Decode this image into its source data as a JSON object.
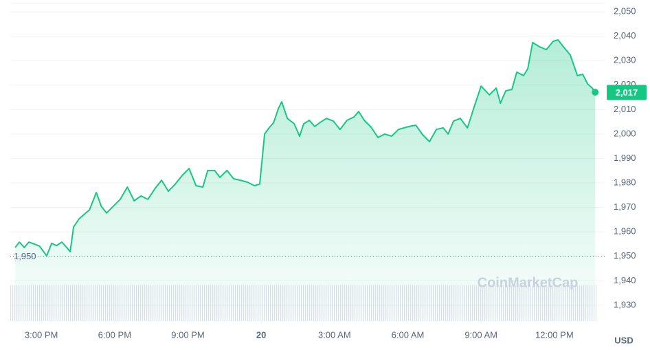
{
  "chart_data": {
    "type": "line",
    "x": [
      13.93,
      14.1,
      14.3,
      14.49,
      14.72,
      14.92,
      15.22,
      15.42,
      15.62,
      15.84,
      16.04,
      16.18,
      16.32,
      16.55,
      16.74,
      16.97,
      17.25,
      17.45,
      17.67,
      17.95,
      18.23,
      18.52,
      18.8,
      19.08,
      19.36,
      19.64,
      19.92,
      20.2,
      20.48,
      20.77,
      21.05,
      21.33,
      21.61,
      21.81,
      22.09,
      22.31,
      22.6,
      22.87,
      23.15,
      23.44,
      23.72,
      23.94,
      24.14,
      24.34,
      24.51,
      24.7,
      24.84,
      25.07,
      25.35,
      25.57,
      25.74,
      25.97,
      26.19,
      26.42,
      26.67,
      26.95,
      27.23,
      27.51,
      27.8,
      27.99,
      28.22,
      28.5,
      28.78,
      29.06,
      29.34,
      29.62,
      30.05,
      30.33,
      30.61,
      30.89,
      31.17,
      31.45,
      31.65,
      31.87,
      32.15,
      32.44,
      32.72,
      33.0,
      33.34,
      33.62,
      33.79,
      34.01,
      34.26,
      34.46,
      34.74,
      34.91,
      35.11,
      35.39,
      35.67,
      35.95,
      36.15,
      36.37,
      36.65,
      36.94,
      37.16,
      37.36,
      37.55,
      37.67
    ],
    "series": [
      {
        "color": "#16c784",
        "values": [
          1953.6,
          1955.8,
          1953.6,
          1955.8,
          1955.0,
          1954.2,
          1950.2,
          1955.3,
          1954.4,
          1955.8,
          1953.6,
          1951.9,
          1962.0,
          1965.4,
          1967.0,
          1969.0,
          1976.1,
          1970.5,
          1967.7,
          1970.5,
          1973.3,
          1978.3,
          1972.7,
          1974.7,
          1973.3,
          1977.5,
          1981.1,
          1976.6,
          1979.5,
          1983.1,
          1985.9,
          1978.9,
          1978.3,
          1985.1,
          1985.1,
          1982.3,
          1985.1,
          1981.7,
          1981.1,
          1980.3,
          1978.9,
          1979.5,
          2000.0,
          2002.8,
          2004.7,
          2010.4,
          2013.2,
          2006.4,
          2004.2,
          1999.1,
          2004.2,
          2005.6,
          2003.1,
          2004.8,
          2006.4,
          2005.3,
          2001.9,
          2005.6,
          2007.0,
          2009.2,
          2005.6,
          2002.8,
          1998.6,
          2000.0,
          1999.1,
          2001.9,
          2003.1,
          2003.6,
          1999.7,
          1996.9,
          2001.9,
          2002.5,
          2000.0,
          2005.3,
          2006.4,
          2002.5,
          2011.2,
          2019.6,
          2016.0,
          2018.8,
          2012.6,
          2017.7,
          2018.2,
          2025.3,
          2023.9,
          2026.7,
          2037.4,
          2035.7,
          2034.5,
          2037.9,
          2038.5,
          2035.7,
          2032.3,
          2023.9,
          2024.4,
          2020.5,
          2018.8,
          2017.1
        ]
      }
    ],
    "xlim": [
      13.73,
      37.72
    ],
    "xticks": [
      {
        "value": 15,
        "label": "3:00 PM"
      },
      {
        "value": 18,
        "label": "6:00 PM"
      },
      {
        "value": 21,
        "label": "9:00 PM"
      },
      {
        "value": 24,
        "label": "20"
      },
      {
        "value": 27,
        "label": "3:00 AM"
      },
      {
        "value": 30,
        "label": "6:00 AM"
      },
      {
        "value": 33,
        "label": "9:00 AM"
      },
      {
        "value": 36,
        "label": "12:00 PM"
      }
    ],
    "ylim": [
      1923.5,
      2053.4
    ],
    "yticks": [
      {
        "value": 1930,
        "label": "1,930"
      },
      {
        "value": 1940,
        "label": "1,940"
      },
      {
        "value": 1950,
        "label": "1,950"
      },
      {
        "value": 1960,
        "label": "1,960"
      },
      {
        "value": 1970,
        "label": "1,970"
      },
      {
        "value": 1980,
        "label": "1,980"
      },
      {
        "value": 1990,
        "label": "1,990"
      },
      {
        "value": 2000,
        "label": "2,000"
      },
      {
        "value": 2010,
        "label": "2,010"
      },
      {
        "value": 2020,
        "label": "2,020"
      },
      {
        "value": 2030,
        "label": "2,030"
      },
      {
        "value": 2040,
        "label": "2,040"
      },
      {
        "value": 2050,
        "label": "2,050"
      }
    ],
    "grid": true,
    "reference_line": {
      "value": 1950,
      "label": "1,950"
    },
    "current_price": {
      "value": 2017,
      "label": "2,017"
    },
    "currency": "USD",
    "watermark": "CoinMarketCap"
  }
}
